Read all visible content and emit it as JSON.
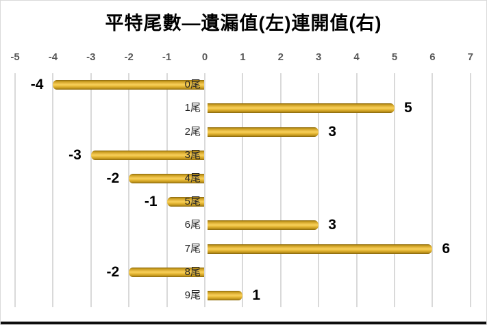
{
  "chart_data": {
    "type": "bar",
    "orientation": "horizontal",
    "title": "平特尾數—遺漏值(左)連開值(右)",
    "left_series_meaning": "遺漏值",
    "right_series_meaning": "連開值",
    "categories": [
      "0尾",
      "1尾",
      "2尾",
      "3尾",
      "4尾",
      "5尾",
      "6尾",
      "7尾",
      "8尾",
      "9尾"
    ],
    "values": [
      -4,
      5,
      3,
      -3,
      -2,
      -1,
      3,
      6,
      -2,
      1
    ],
    "data_labels": [
      "-4",
      "5",
      "3",
      "-3",
      "-2",
      "-1",
      "3",
      "6",
      "-2",
      "1"
    ],
    "x_ticks": [
      -5,
      -4,
      -3,
      -2,
      -1,
      0,
      1,
      2,
      3,
      4,
      5,
      6,
      7
    ],
    "x_tick_labels": [
      "-5",
      "-4",
      "-3",
      "-2",
      "-1",
      "0",
      "1",
      "2",
      "3",
      "4",
      "5",
      "6",
      "7"
    ],
    "xlim": [
      -5,
      7
    ],
    "grid": true,
    "legend_position": "none",
    "colors": {
      "bar_main": "#eec14a",
      "bar_edge": "#87660f",
      "gridline": "#d9d9d9",
      "tick_label": "#595959",
      "category_label": "#262626",
      "data_label": "#000000",
      "title": "#000000",
      "background": "#ffffff"
    }
  }
}
